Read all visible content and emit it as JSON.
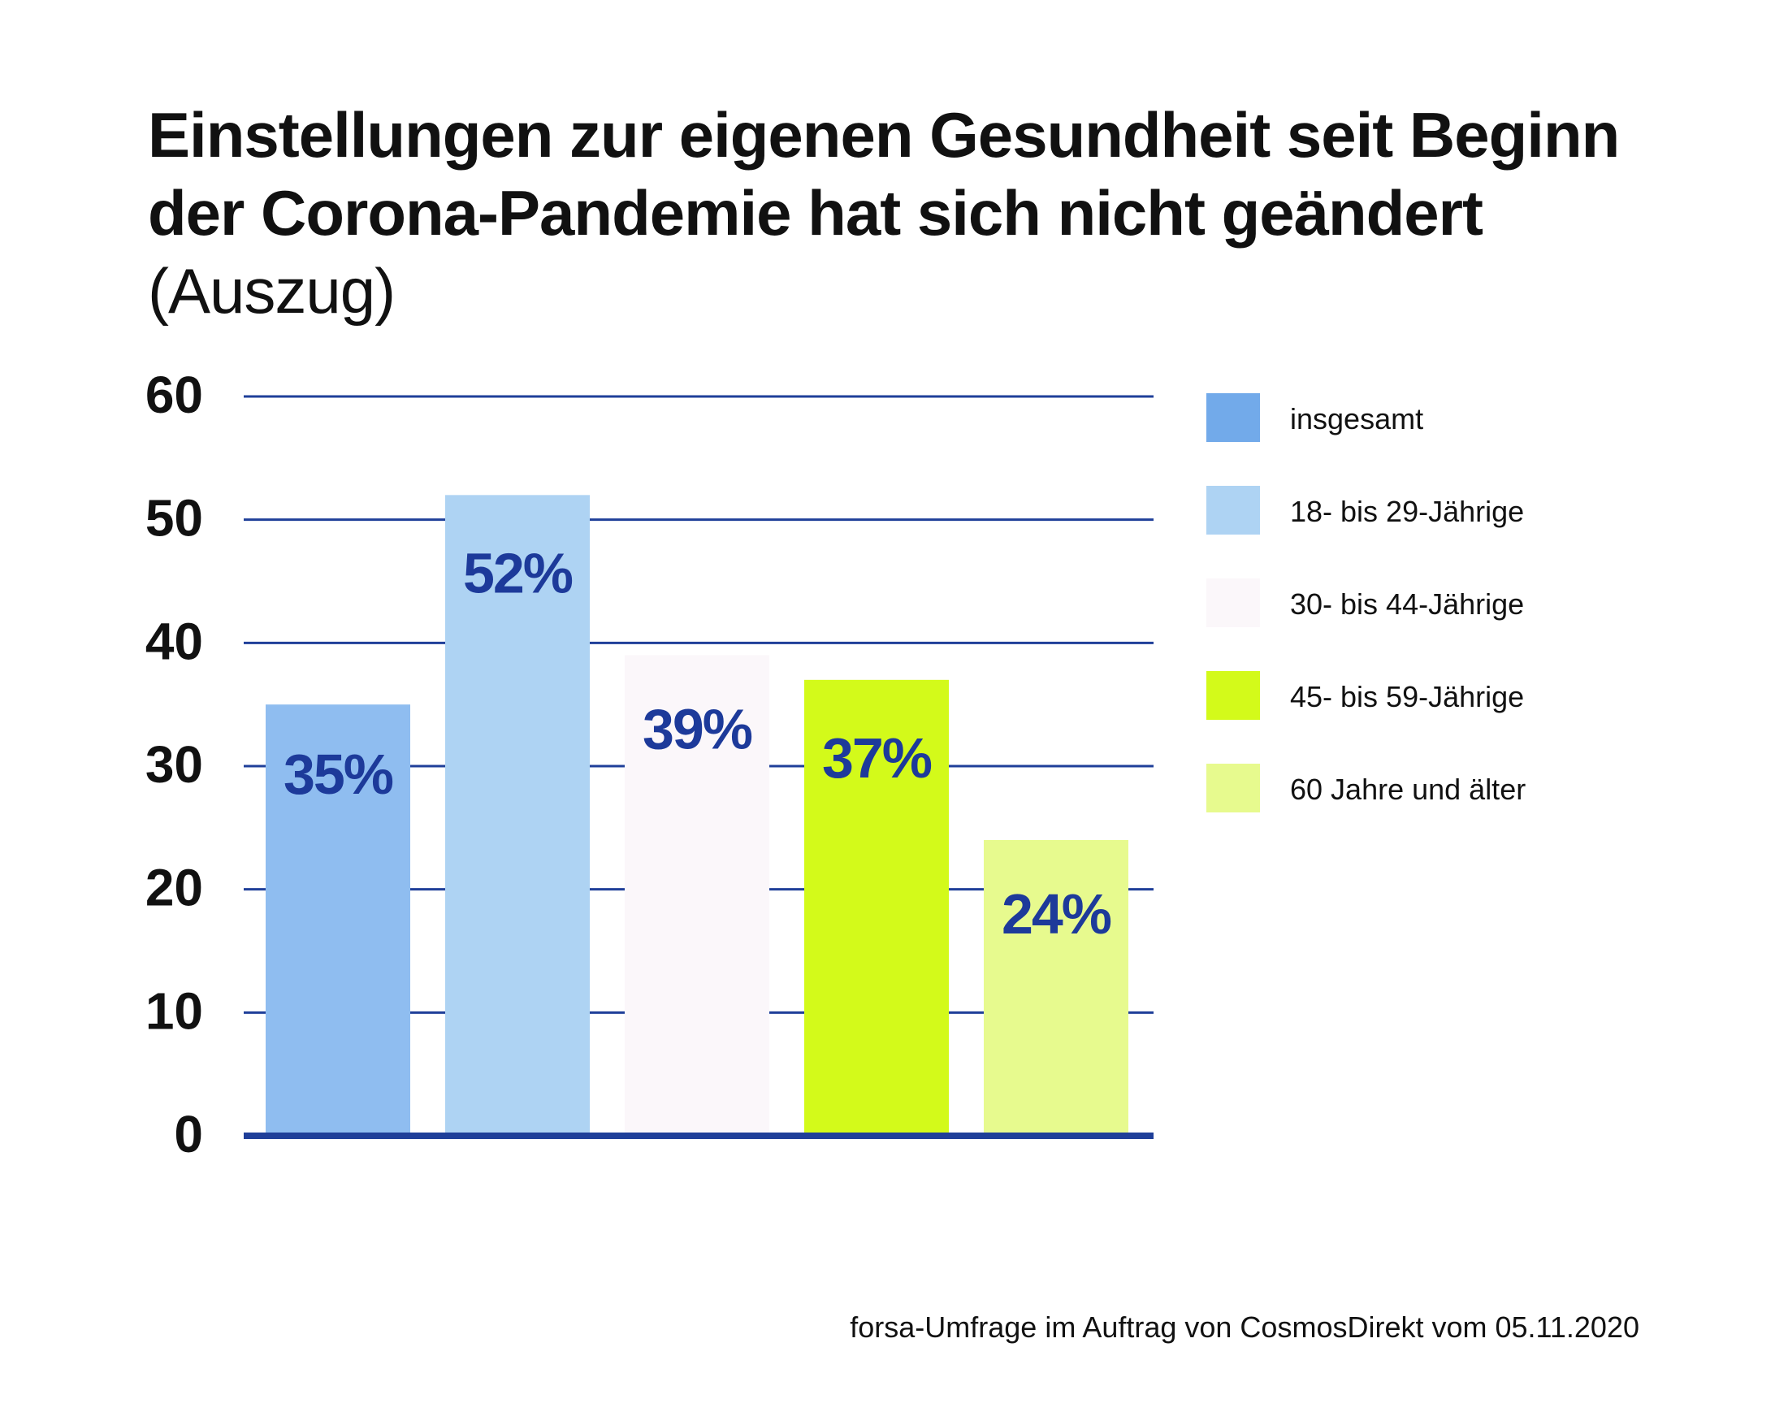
{
  "title": {
    "main": "Einstellungen zur eigenen Gesundheit seit Beginn der Corona-Pandemie hat sich nicht geändert",
    "suffix": "(Auszug)"
  },
  "source": "forsa-Umfrage im Auftrag von CosmosDirekt vom 05.11.2020",
  "chart_data": {
    "type": "bar",
    "title": "Einstellungen zur eigenen Gesundheit seit Beginn der Corona-Pandemie hat sich nicht geändert (Auszug)",
    "xlabel": "",
    "ylabel": "",
    "ylim": [
      0,
      60
    ],
    "yticks": [
      "0",
      "10",
      "20",
      "30",
      "40",
      "50",
      "60"
    ],
    "grid": true,
    "legend_position": "right",
    "gridline_color": "#1f3f99",
    "value_label_color": "#1d3a9a",
    "categories": [
      "insgesamt",
      "18- bis 29-Jährige",
      "30- bis 44-Jährige",
      "45- bis 59-Jährige",
      "60 Jahre und älter"
    ],
    "values": [
      35,
      52,
      39,
      37,
      24
    ],
    "value_labels": [
      "35%",
      "52%",
      "39%",
      "37%",
      "24%"
    ],
    "colors": [
      "#8fbdf0",
      "#aed3f3",
      "#fbf7fa",
      "#d3fa1a",
      "#e7fa8e"
    ],
    "legend_colors": [
      "#72aaea",
      "#aed3f3",
      "#fbf7fa",
      "#d3fa1a",
      "#e7fa8e"
    ]
  }
}
